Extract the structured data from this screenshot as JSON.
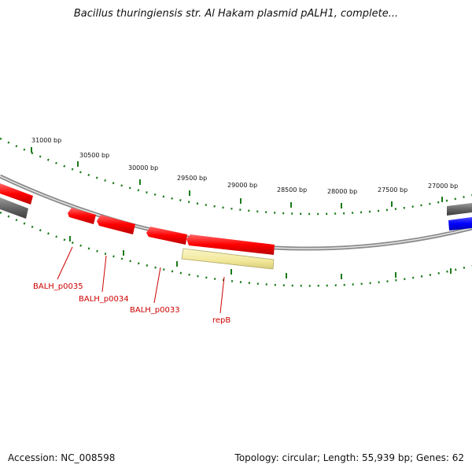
{
  "title": "Bacillus thuringiensis str. Al Hakam plasmid pALH1, complete...",
  "footer": {
    "accession": "Accession: NC_008598",
    "summary": "Topology: circular; Length: 55,939 bp; Genes: 62"
  },
  "colors": {
    "forward_gene": "#ff0000",
    "repB_gene": "#f2e89a",
    "gray_feature": "#666666",
    "blue_feature": "#0000ff",
    "ticks": "#1a7a1a",
    "labels": "#cc0000",
    "backbone": "#8a8a8a"
  },
  "scale": {
    "tick_labels": [
      "31000 bp",
      "30500 bp",
      "30000 bp",
      "29500 bp",
      "29000 bp",
      "28500 bp",
      "28000 bp",
      "27500 bp",
      "27000 bp"
    ]
  },
  "genes": [
    {
      "name": "BALH_p0035"
    },
    {
      "name": "BALH_p0034"
    },
    {
      "name": "BALH_p0033"
    },
    {
      "name": "repB"
    }
  ]
}
